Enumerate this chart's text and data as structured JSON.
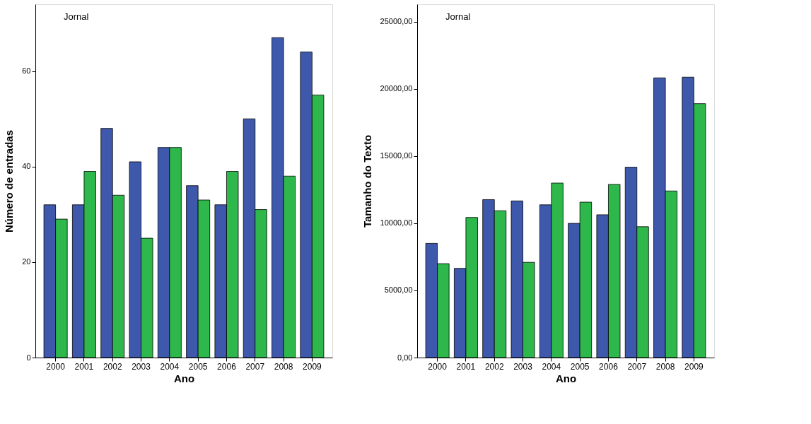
{
  "chart_data": [
    {
      "type": "bar",
      "xlabel": "Ano",
      "ylabel": "Número de entradas",
      "annotations": [
        "Jornal"
      ],
      "grid": false,
      "categories": [
        "2000",
        "2001",
        "2002",
        "2003",
        "2004",
        "2005",
        "2006",
        "2007",
        "2008",
        "2009"
      ],
      "series": [
        {
          "color": "#3e58ac",
          "values": [
            32,
            32,
            48,
            41,
            44,
            36,
            32,
            50,
            67,
            64
          ]
        },
        {
          "color": "#2eb84b",
          "values": [
            29,
            39,
            34,
            25,
            44,
            33,
            39,
            31,
            38,
            55
          ]
        }
      ],
      "ylim": [
        0,
        74
      ],
      "yticks": [
        0,
        20,
        40,
        60
      ]
    },
    {
      "type": "bar",
      "xlabel": "Ano",
      "ylabel": "Tamanho do Texto",
      "annotations": [
        "Jornal"
      ],
      "grid": false,
      "categories": [
        "2000",
        "2001",
        "2002",
        "2003",
        "2004",
        "2005",
        "2006",
        "2007",
        "2008",
        "2009"
      ],
      "series": [
        {
          "color": "#3e58ac",
          "values": [
            8500,
            6640,
            11760,
            11660,
            11370,
            9990,
            10630,
            14170,
            20820,
            20870
          ]
        },
        {
          "color": "#2eb84b",
          "values": [
            6990,
            10430,
            10930,
            7090,
            12990,
            11570,
            12890,
            9740,
            12400,
            18900
          ]
        }
      ],
      "ylim": [
        0,
        26300
      ],
      "yticks": [
        {
          "value": 0,
          "label": "0,00"
        },
        {
          "value": 5000,
          "label": "5000,00"
        },
        {
          "value": 10000,
          "label": "10000,00"
        },
        {
          "value": 15000,
          "label": "15000,00"
        },
        {
          "value": 20000,
          "label": "20000,00"
        },
        {
          "value": 25000,
          "label": "25000,00"
        }
      ]
    }
  ]
}
